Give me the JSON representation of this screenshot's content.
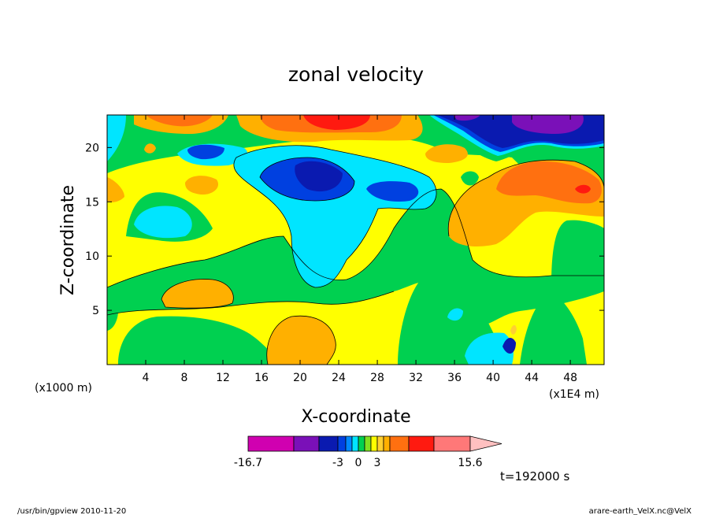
{
  "chart_data": {
    "type": "heatmap",
    "title": "zonal velocity",
    "xlabel": "X-coordinate",
    "ylabel": "Z-coordinate",
    "x_unit_left": "(x1000 m)",
    "x_unit_right": "(x1E4 m)",
    "xlim": [
      0,
      51.5
    ],
    "ylim": [
      0,
      23
    ],
    "xticks": [
      "4",
      "8",
      "12",
      "16",
      "20",
      "24",
      "28",
      "32",
      "36",
      "40",
      "44",
      "48"
    ],
    "yticks": [
      "5",
      "10",
      "15",
      "20"
    ],
    "colorbar": {
      "colors": [
        "#d000b0",
        "#7a10b8",
        "#0a1ab0",
        "#0040e0",
        "#0088ff",
        "#00e5ff",
        "#00d050",
        "#80e020",
        "#ffff00",
        "#ffd030",
        "#ffb000",
        "#ff7010",
        "#ff1a10",
        "#ff7878",
        "#ffc0c0"
      ],
      "labels": [
        {
          "text": "-16.7",
          "value": -16.7
        },
        {
          "text": "-3",
          "value": -3
        },
        {
          "text": "0",
          "value": 0
        },
        {
          "text": "3",
          "value": 3
        },
        {
          "text": "15.6",
          "value": 15.6
        }
      ]
    },
    "time_label": "t=192000 s",
    "regions": [
      {
        "level": "green",
        "x": [
          0,
          51.5
        ],
        "y": [
          0,
          23
        ]
      },
      {
        "level": "yellow",
        "x": [
          2,
          51
        ],
        "y": [
          6,
          21
        ]
      },
      {
        "level": "cyan",
        "x": [
          14,
          34
        ],
        "y": [
          8,
          20
        ]
      },
      {
        "level": "blue",
        "x": [
          16,
          30
        ],
        "y": [
          15,
          19
        ]
      },
      {
        "level": "navy",
        "x": [
          34,
          51.5
        ],
        "y": [
          19,
          23
        ]
      },
      {
        "level": "orange",
        "x": [
          4,
          34
        ],
        "y": [
          19,
          23
        ]
      },
      {
        "level": "red",
        "x": [
          20,
          27
        ],
        "y": [
          21,
          23
        ]
      },
      {
        "level": "orange",
        "x": [
          35,
          51
        ],
        "y": [
          11,
          19
        ]
      }
    ]
  },
  "footer": {
    "left": "/usr/bin/gpview   2010-11-20",
    "right": "arare-earth_VelX.nc@VelX"
  }
}
